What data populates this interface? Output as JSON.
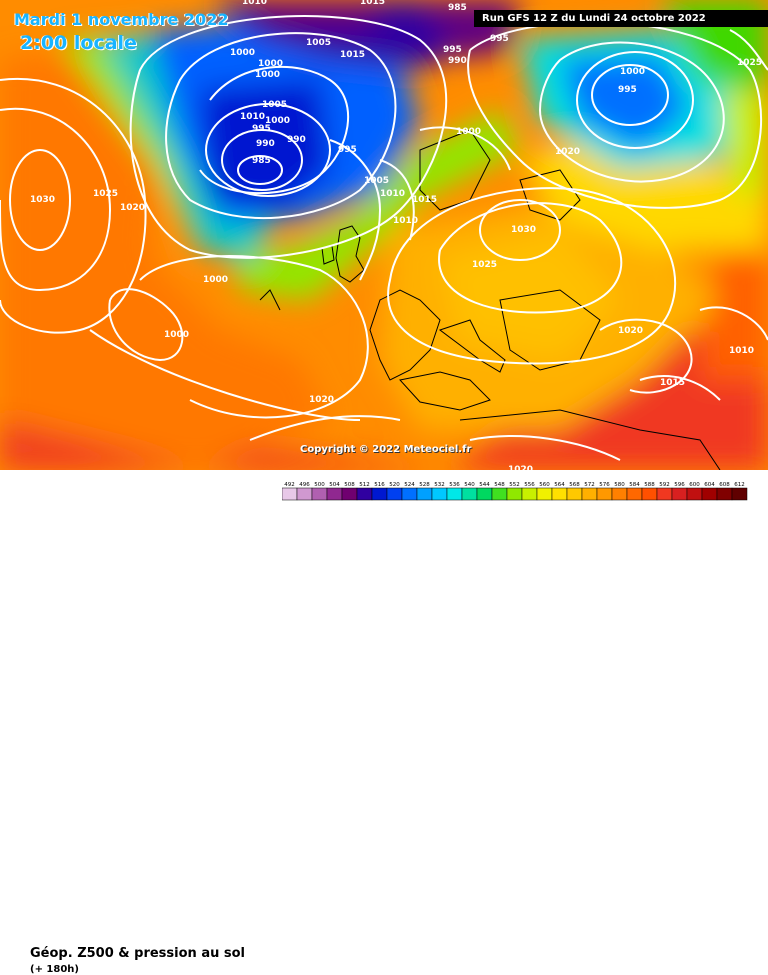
{
  "header": {
    "date": "Mardi 1 novembre 2022",
    "local_time": "2:00 locale",
    "run": "Run GFS 12 Z du Lundi 24 octobre 2022"
  },
  "copyright": "Copyright © 2022 Meteociel.fr",
  "legend": {
    "title": "Géop. Z500 & pression au sol",
    "subtitle": "(+ 180h)",
    "ticks": [
      "492",
      "496",
      "500",
      "504",
      "508",
      "512",
      "516",
      "520",
      "524",
      "528",
      "532",
      "536",
      "540",
      "544",
      "548",
      "552",
      "556",
      "560",
      "564",
      "568",
      "572",
      "576",
      "580",
      "584",
      "588",
      "592",
      "596",
      "600",
      "604",
      "608",
      "612"
    ],
    "colors": [
      "#e8c8e8",
      "#d098d0",
      "#b060b0",
      "#902890",
      "#700070",
      "#3000a0",
      "#0018d0",
      "#0040f0",
      "#0070ff",
      "#00a0ff",
      "#00c8ff",
      "#00e8e8",
      "#00e0a0",
      "#00d860",
      "#40e020",
      "#90e800",
      "#c8f000",
      "#f0f000",
      "#ffe000",
      "#ffc800",
      "#ffb000",
      "#ff9800",
      "#ff8000",
      "#ff6800",
      "#ff5000",
      "#f03820",
      "#d82020",
      "#c01010",
      "#a00000",
      "#800000",
      "#600000"
    ]
  },
  "isobars": [
    {
      "label": "1000",
      "id": "lab-1000-a"
    },
    {
      "label": "1000",
      "id": "lab-1000-b"
    },
    {
      "label": "1005",
      "id": "lab-1005-a"
    },
    {
      "label": "1015",
      "id": "lab-1015-a"
    },
    {
      "label": "1000",
      "id": "lab-1000-c"
    },
    {
      "label": "1005",
      "id": "lab-1005-b"
    },
    {
      "label": "1010",
      "id": "lab-1010-a"
    },
    {
      "label": "1000",
      "id": "lab-1000-d"
    },
    {
      "label": "995",
      "id": "lab-995-a"
    },
    {
      "label": "990",
      "id": "lab-990-a"
    },
    {
      "label": "985",
      "id": "lab-985-a"
    },
    {
      "label": "990",
      "id": "lab-990-b"
    },
    {
      "label": "995",
      "id": "lab-995-b"
    },
    {
      "label": "985",
      "id": "lab-985-b"
    },
    {
      "label": "995",
      "id": "lab-995-c"
    },
    {
      "label": "990",
      "id": "lab-990-c"
    },
    {
      "label": "995",
      "id": "lab-995-d"
    },
    {
      "label": "1000",
      "id": "lab-1000-e"
    },
    {
      "label": "995",
      "id": "lab-995-e"
    },
    {
      "label": "1000",
      "id": "lab-1000-f"
    },
    {
      "label": "1020",
      "id": "lab-1020-a"
    },
    {
      "label": "1025",
      "id": "lab-1025-a"
    },
    {
      "label": "1005",
      "id": "lab-1005-c"
    },
    {
      "label": "1010",
      "id": "lab-1010-b"
    },
    {
      "label": "1015",
      "id": "lab-1015-b"
    },
    {
      "label": "1010",
      "id": "lab-1010-c"
    },
    {
      "label": "1030",
      "id": "lab-1030-a"
    },
    {
      "label": "1025",
      "id": "lab-1025-b"
    },
    {
      "label": "1020",
      "id": "lab-1020-b"
    },
    {
      "label": "1030",
      "id": "lab-1030-b"
    },
    {
      "label": "1025",
      "id": "lab-1025-c"
    },
    {
      "label": "1000",
      "id": "lab-1000-g"
    },
    {
      "label": "1000",
      "id": "lab-1000-h"
    },
    {
      "label": "1020",
      "id": "lab-1020-c"
    },
    {
      "label": "1010",
      "id": "lab-1010-d"
    },
    {
      "label": "1015",
      "id": "lab-1015-c"
    },
    {
      "label": "1020",
      "id": "lab-1020-d"
    },
    {
      "label": "1020",
      "id": "lab-1020-e"
    },
    {
      "label": "1010",
      "id": "lab-1010-e"
    },
    {
      "label": "1015",
      "id": "lab-1015-d"
    }
  ]
}
